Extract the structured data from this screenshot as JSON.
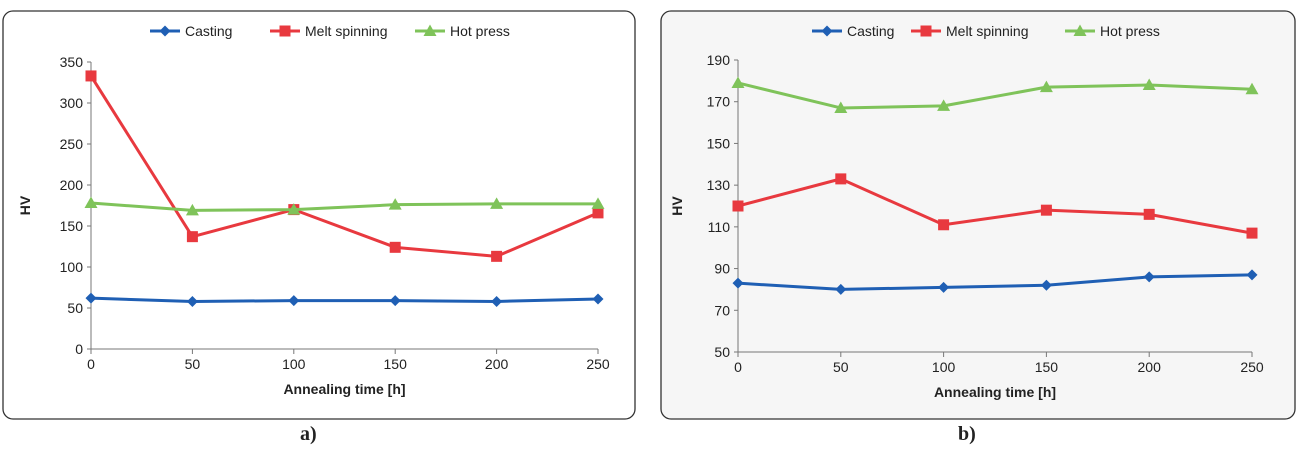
{
  "colors": {
    "casting": "#1f5fb4",
    "melt_spinning": "#e8393f",
    "hot_press": "#7fc35a",
    "frame": "#333333",
    "axis": "#777777",
    "panel_bg_b": "#f6f6f6"
  },
  "panel_labels": {
    "a": "a)",
    "b": "b)"
  },
  "chart_data": [
    {
      "type": "line",
      "xlabel": "Annealing time [h]",
      "ylabel": "HV",
      "x": [
        0,
        50,
        100,
        150,
        200,
        250
      ],
      "xlim": [
        0,
        250
      ],
      "xticks": [
        "0",
        "50",
        "100",
        "150",
        "200",
        "250"
      ],
      "ylim": [
        0,
        350
      ],
      "yticks": [
        "0",
        "50",
        "100",
        "150",
        "200",
        "250",
        "300",
        "350"
      ],
      "grid": false,
      "legend": "top-center",
      "series": [
        {
          "name": "Casting",
          "marker": "diamond",
          "values": [
            62,
            58,
            59,
            59,
            58,
            61
          ]
        },
        {
          "name": "Melt spinning",
          "marker": "square",
          "values": [
            333,
            137,
            170,
            124,
            113,
            166
          ]
        },
        {
          "name": "Hot press",
          "marker": "triangle",
          "values": [
            178,
            169,
            170,
            176,
            177,
            177
          ]
        }
      ]
    },
    {
      "type": "line",
      "xlabel": "Annealing time [h]",
      "ylabel": "HV",
      "x": [
        0,
        50,
        100,
        150,
        200,
        250
      ],
      "xlim": [
        0,
        250
      ],
      "xticks": [
        "0",
        "50",
        "100",
        "150",
        "200",
        "250"
      ],
      "ylim": [
        50,
        190
      ],
      "yticks": [
        "50",
        "70",
        "90",
        "110",
        "130",
        "150",
        "170",
        "190"
      ],
      "grid": false,
      "legend": "top-center",
      "series": [
        {
          "name": "Casting",
          "marker": "diamond",
          "values": [
            83,
            80,
            81,
            82,
            86,
            87
          ]
        },
        {
          "name": "Melt spinning",
          "marker": "square",
          "values": [
            120,
            133,
            111,
            118,
            116,
            107
          ]
        },
        {
          "name": "Hot press",
          "marker": "triangle",
          "values": [
            179,
            167,
            168,
            177,
            178,
            176
          ]
        }
      ]
    }
  ]
}
